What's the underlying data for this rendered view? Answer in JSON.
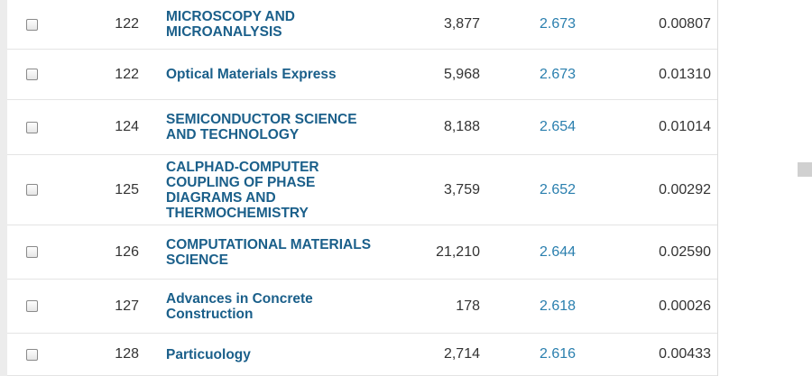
{
  "table": {
    "rows": [
      {
        "rank": "122",
        "title": "MICROSCOPY AND MICROANALYSIS",
        "total_cites": "3,877",
        "jif": "2.673",
        "eigenfactor": "0.00807"
      },
      {
        "rank": "122",
        "title": "Optical Materials Express",
        "total_cites": "5,968",
        "jif": "2.673",
        "eigenfactor": "0.01310"
      },
      {
        "rank": "124",
        "title": "SEMICONDUCTOR SCIENCE AND TECHNOLOGY",
        "total_cites": "8,188",
        "jif": "2.654",
        "eigenfactor": "0.01014"
      },
      {
        "rank": "125",
        "title": "CALPHAD-COMPUTER COUPLING OF PHASE DIAGRAMS AND THERMOCHEMISTRY",
        "total_cites": "3,759",
        "jif": "2.652",
        "eigenfactor": "0.00292"
      },
      {
        "rank": "126",
        "title": "COMPUTATIONAL MATERIALS SCIENCE",
        "total_cites": "21,210",
        "jif": "2.644",
        "eigenfactor": "0.02590"
      },
      {
        "rank": "127",
        "title": "Advances in Concrete Construction",
        "total_cites": "178",
        "jif": "2.618",
        "eigenfactor": "0.00026"
      },
      {
        "rank": "128",
        "title": "Particuology",
        "total_cites": "2,714",
        "jif": "2.616",
        "eigenfactor": "0.00433"
      }
    ]
  },
  "colors": {
    "title_link": "#1a5f8a",
    "jif_link": "#2a7fae",
    "text": "#333333",
    "divider": "#e4e4e4"
  }
}
